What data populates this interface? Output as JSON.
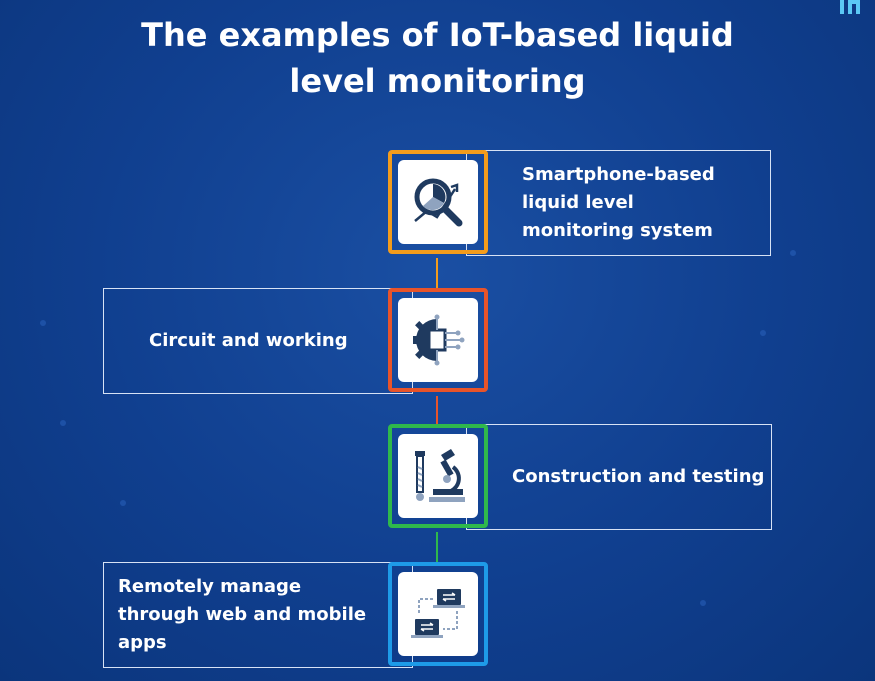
{
  "title": {
    "line1": "The examples of IoT-based liquid",
    "line2": "level monitoring"
  },
  "items": [
    {
      "label": "Smartphone-based liquid level monitoring system",
      "icon": "magnifier-chart-icon",
      "color": "#f39c1c"
    },
    {
      "label": "Circuit and working",
      "icon": "gear-circuit-icon",
      "color": "#e8542a"
    },
    {
      "label": "Construction and testing",
      "icon": "microscope-icon",
      "color": "#2fb84c"
    },
    {
      "label": "Remotely manage through web and mobile apps",
      "icon": "devices-sync-icon",
      "color": "#1e9be8"
    }
  ],
  "colors": {
    "background": "#103f8f",
    "box_border": "#d7e2f5",
    "icon_dark": "#1f3a5f"
  }
}
